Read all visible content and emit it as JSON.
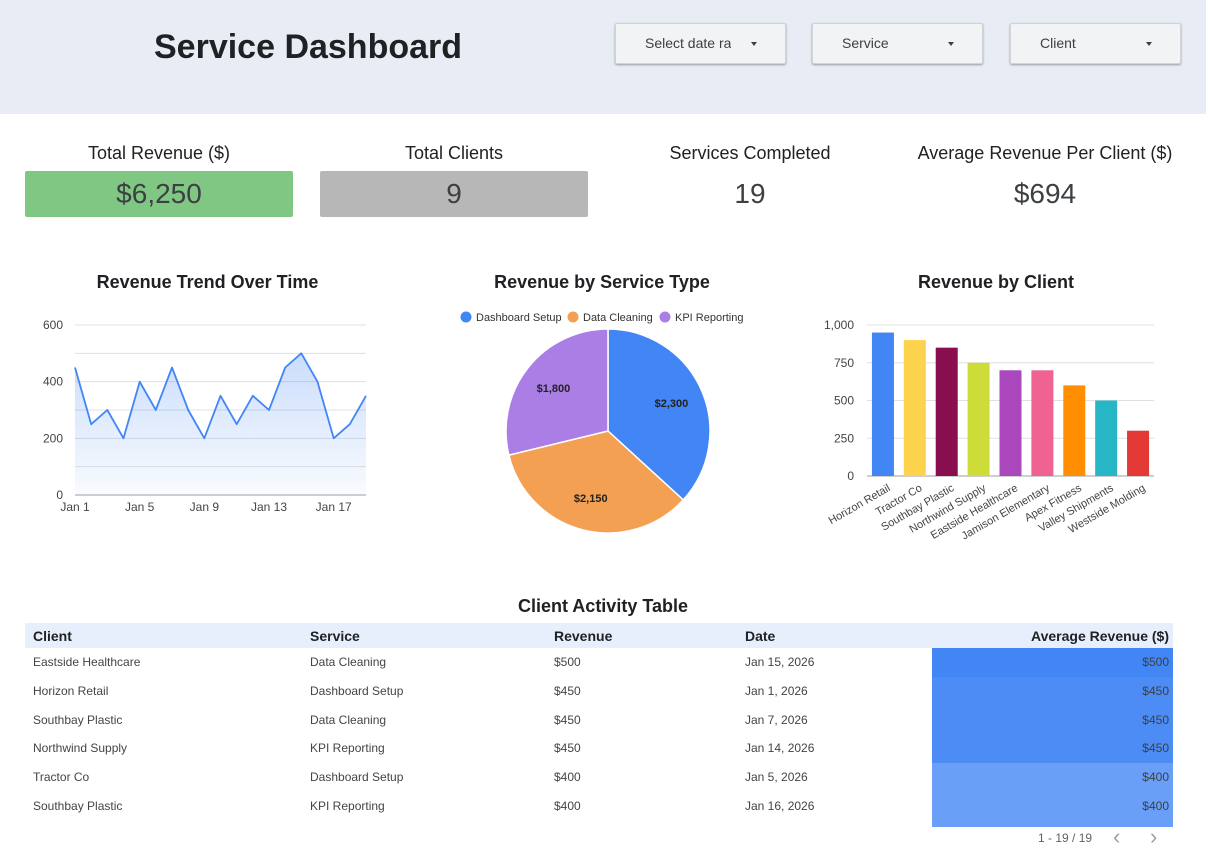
{
  "header": {
    "title": "Service Dashboard",
    "filters": [
      {
        "label": "Select date range"
      },
      {
        "label": "Service"
      },
      {
        "label": "Client"
      }
    ]
  },
  "kpis": [
    {
      "title": "Total Revenue ($)",
      "value": "$6,250",
      "color": "#81c784"
    },
    {
      "title": "Total Clients",
      "value": "9",
      "color": "#b7b7b7"
    },
    {
      "title": "Services Completed",
      "value": "19",
      "color": ""
    },
    {
      "title": "Average Revenue Per Client ($)",
      "value": "$694",
      "color": ""
    }
  ],
  "chart_data": [
    {
      "type": "area",
      "title": "Revenue Trend Over Time",
      "x": [
        "Jan 1",
        "Jan 2",
        "Jan 3",
        "Jan 4",
        "Jan 5",
        "Jan 6",
        "Jan 7",
        "Jan 8",
        "Jan 9",
        "Jan 10",
        "Jan 11",
        "Jan 12",
        "Jan 13",
        "Jan 14",
        "Jan 15",
        "Jan 16",
        "Jan 17",
        "Jan 18",
        "Jan 19"
      ],
      "values": [
        450,
        250,
        300,
        200,
        400,
        300,
        450,
        300,
        200,
        350,
        250,
        350,
        300,
        450,
        500,
        400,
        200,
        250,
        350
      ],
      "xticks": [
        "Jan 1",
        "Jan 5",
        "Jan 9",
        "Jan 13",
        "Jan 17"
      ],
      "yticks": [
        0,
        200,
        400,
        600
      ],
      "ylim": [
        0,
        600
      ],
      "grid": true,
      "color": "#4285f4"
    },
    {
      "type": "pie",
      "title": "Revenue by Service Type",
      "legend_position": "top",
      "slices": [
        {
          "name": "Dashboard Setup",
          "value": 2300,
          "label": "$2,300",
          "color": "#4285f4"
        },
        {
          "name": "Data Cleaning",
          "value": 2150,
          "label": "$2,150",
          "color": "#f4a053"
        },
        {
          "name": "KPI Reporting",
          "value": 1800,
          "label": "$1,800",
          "color": "#ab7ee6"
        }
      ]
    },
    {
      "type": "bar",
      "title": "Revenue by Client",
      "categories": [
        "Horizon Retail",
        "Tractor Co",
        "Southbay Plastic",
        "Northwind Supply",
        "Eastside Healthcare",
        "Jamison Elementary",
        "Apex Fitness",
        "Valley Shipments",
        "Westside Molding"
      ],
      "values": [
        950,
        900,
        850,
        750,
        700,
        700,
        600,
        500,
        300
      ],
      "colors": [
        "#4285f4",
        "#fdd34d",
        "#880e4f",
        "#cddc39",
        "#ab47bc",
        "#f06292",
        "#ff8f00",
        "#26b6c6",
        "#e53935"
      ],
      "yticks": [
        "0",
        "250",
        "500",
        "750",
        "1,000"
      ],
      "ylim": [
        0,
        1000
      ],
      "grid": true
    }
  ],
  "table": {
    "title": "Client Activity Table",
    "columns": [
      "Client",
      "Service",
      "Revenue",
      "Date",
      "Average Revenue ($)"
    ],
    "rows": [
      {
        "client": "Eastside Healthcare",
        "service": "Data Cleaning",
        "revenue": "$500",
        "date": "Jan 15, 2026",
        "avg": "$500"
      },
      {
        "client": "Horizon Retail",
        "service": "Dashboard Setup",
        "revenue": "$450",
        "date": "Jan 1, 2026",
        "avg": "$450"
      },
      {
        "client": "Southbay Plastic",
        "service": "Data Cleaning",
        "revenue": "$450",
        "date": "Jan 7, 2026",
        "avg": "$450"
      },
      {
        "client": "Northwind Supply",
        "service": "KPI Reporting",
        "revenue": "$450",
        "date": "Jan 14, 2026",
        "avg": "$450"
      },
      {
        "client": "Tractor Co",
        "service": "Dashboard Setup",
        "revenue": "$400",
        "date": "Jan 5, 2026",
        "avg": "$400"
      },
      {
        "client": "Southbay Plastic",
        "service": "KPI Reporting",
        "revenue": "$400",
        "date": "Jan 16, 2026",
        "avg": "$400"
      }
    ],
    "heat_colors": [
      "#4285f4",
      "#4d8cf5",
      "#4d8cf5",
      "#4d8cf5",
      "#6a9ff7",
      "#6a9ff7"
    ],
    "pagination": "1 - 19 / 19"
  }
}
